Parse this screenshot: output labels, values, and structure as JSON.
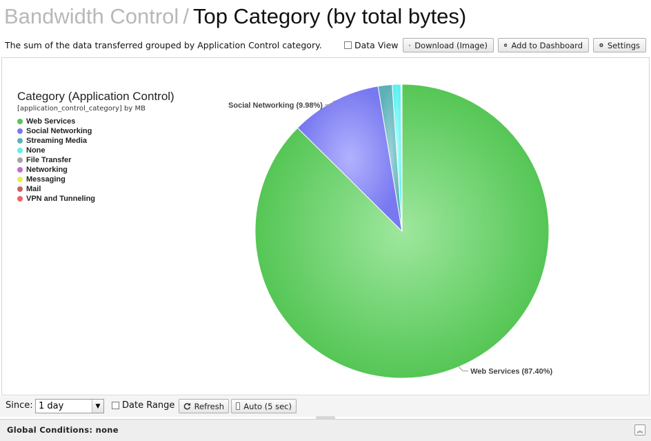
{
  "header": {
    "breadcrumb": "Bandwidth Control",
    "separator": "/",
    "title": "Top Category (by total bytes)"
  },
  "description": "The sum of the data transferred grouped by Application Control category.",
  "toolbar": {
    "data_view": "Data View",
    "download": "Download (Image)",
    "add_dashboard": "Add to Dashboard",
    "settings": "Settings"
  },
  "chart_data": {
    "type": "pie",
    "title": "Category (Application Control)",
    "subtitle": "[application_control_category] by MB",
    "legend_position": "top-left",
    "categories": [
      "Web Services",
      "Social Networking",
      "Streaming Media",
      "None",
      "File Transfer",
      "Networking",
      "Messaging",
      "Mail",
      "VPN and Tunneling"
    ],
    "values": [
      87.4,
      9.98,
      1.55,
      0.95,
      0.04,
      0.03,
      0.02,
      0.02,
      0.01
    ],
    "colors": [
      "#55c655",
      "#7878f0",
      "#5cb0b7",
      "#5ef0f0",
      "#a3a3a3",
      "#c46ad0",
      "#ecec4f",
      "#c9635f",
      "#f06262"
    ],
    "data_labels": {
      "Social Networking": "Social Networking (9.98%)",
      "Web Services": "Web Services (87.40%)"
    }
  },
  "footer": {
    "since_label": "Since:",
    "since_value": "1 day",
    "date_range": "Date Range",
    "refresh": "Refresh",
    "auto": "Auto (5 sec)"
  },
  "global_conditions": "Global Conditions: none",
  "icons": {
    "download": "download-icon",
    "add": "plus-circle-icon",
    "settings": "gear-icon",
    "refresh": "refresh-icon",
    "expand": "chevron-up-icon"
  }
}
